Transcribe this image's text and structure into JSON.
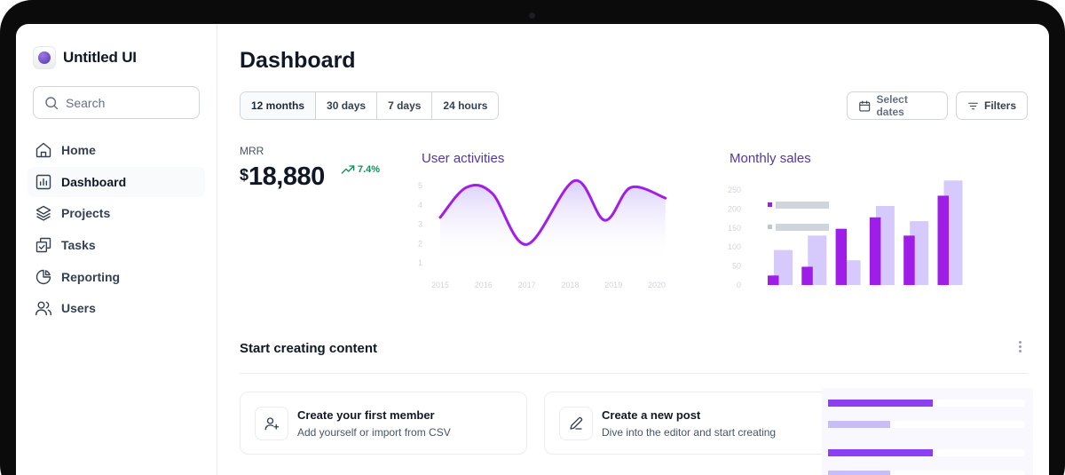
{
  "app": {
    "name": "Untitled UI"
  },
  "search": {
    "placeholder": "Search"
  },
  "sidebar": {
    "items": [
      {
        "label": "Home",
        "icon": "home-icon",
        "active": false
      },
      {
        "label": "Dashboard",
        "icon": "bar-chart-icon",
        "active": true
      },
      {
        "label": "Projects",
        "icon": "layers-icon",
        "active": false
      },
      {
        "label": "Tasks",
        "icon": "tasks-icon",
        "active": false
      },
      {
        "label": "Reporting",
        "icon": "pie-chart-icon",
        "active": false
      },
      {
        "label": "Users",
        "icon": "users-icon",
        "active": false
      }
    ]
  },
  "main": {
    "title": "Dashboard",
    "ranges": [
      "12 months",
      "30 days",
      "7 days",
      "24 hours"
    ],
    "selected_range": "12 months",
    "select_dates_label": "Select dates",
    "filters_label": "Filters"
  },
  "mrr": {
    "label": "MRR",
    "currency": "$",
    "value": "18,880",
    "change": "7.4%",
    "trend": "up",
    "trend_color": "#079455"
  },
  "colors": {
    "accent": "#7f56d9",
    "accent_dark": "#53389e",
    "line": "#a21ee8",
    "bar_primary": "#9e1ee8",
    "bar_secondary": "#d6c9fc"
  },
  "chart_data": [
    {
      "type": "line",
      "title": "User activities",
      "x": [
        "2015",
        "2016",
        "2017",
        "2018",
        "2019",
        "2020"
      ],
      "ylim": [
        1,
        5
      ],
      "yticks": [
        "5",
        "4",
        "3",
        "2",
        "1"
      ],
      "points": [
        [
          2015,
          3.35
        ],
        [
          2015.6,
          4.9
        ],
        [
          2016.2,
          4.6
        ],
        [
          2017,
          1.95
        ],
        [
          2018.1,
          5.25
        ],
        [
          2018.8,
          3.2
        ],
        [
          2019.4,
          4.9
        ],
        [
          2020.2,
          4.35
        ]
      ],
      "grid": false,
      "legend": "none"
    },
    {
      "type": "bar",
      "title": "Monthly sales",
      "categories": [
        "",
        "",
        "",
        "",
        "",
        ""
      ],
      "yticks": [
        "250",
        "200",
        "150",
        "100",
        "50",
        "0"
      ],
      "ylim": [
        0,
        250
      ],
      "series": [
        {
          "values": [
            25,
            48,
            148,
            178,
            130,
            235
          ]
        },
        {
          "values": [
            92,
            130,
            65,
            208,
            168,
            275
          ]
        }
      ],
      "legend": "top-left",
      "grid": false
    }
  ],
  "section": {
    "title": "Start creating content",
    "cards": [
      {
        "title": "Create your first member",
        "description": "Add yourself or import from CSV",
        "icon": "user-plus-icon"
      },
      {
        "title": "Create a new post",
        "description": "Dive into the editor and start creating",
        "icon": "pen-icon"
      }
    ]
  }
}
